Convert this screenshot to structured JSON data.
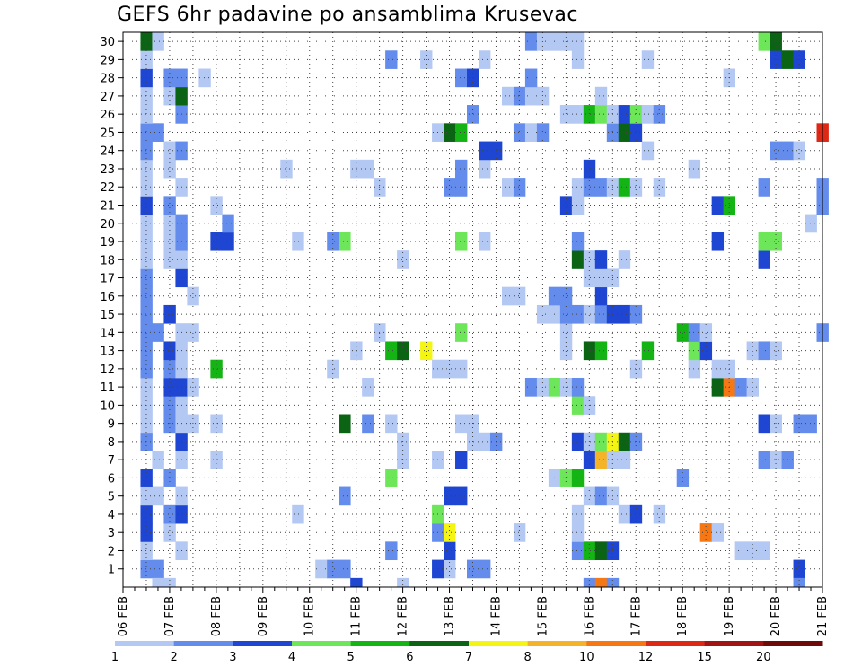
{
  "chart_data": {
    "type": "heatmap",
    "title": "GEFS 6hr padavine po ansamblima Krusevac",
    "x_tick_labels": [
      "06 FEB",
      "07 FEB",
      "08 FEB",
      "09 FEB",
      "10 FEB",
      "11 FEB",
      "12 FEB",
      "13 FEB",
      "14 FEB",
      "15 FEB",
      "16 FEB",
      "17 FEB",
      "18 FEB",
      "19 FEB",
      "20 FEB",
      "21 FEB"
    ],
    "x_range_6h_steps": [
      0,
      60
    ],
    "y_tick_labels": [
      "1",
      "2",
      "3",
      "4",
      "5",
      "6",
      "7",
      "8",
      "9",
      "10",
      "11",
      "12",
      "13",
      "14",
      "15",
      "16",
      "17",
      "18",
      "19",
      "20",
      "21",
      "22",
      "23",
      "24",
      "25",
      "26",
      "27",
      "28",
      "29",
      "30"
    ],
    "y_range_members": [
      0,
      30
    ],
    "grid": "dotted",
    "colorbar": {
      "bounds": [
        "1",
        "2",
        "3",
        "4",
        "5",
        "6",
        "7",
        "8",
        "10",
        "12",
        "15",
        "20"
      ],
      "colors": [
        "#b4c8f4",
        "#648cec",
        "#1e46d2",
        "#6ee65a",
        "#14b414",
        "#0a6414",
        "#f5f514",
        "#f5b428",
        "#f57814",
        "#dc2814",
        "#a01414",
        "#6e0a0a"
      ]
    },
    "note_rows": "each row: member index (1-30); each cell: [6h step index, color class 0-11]",
    "cells": [
      [
        1,
        [
          [
            2,
            1
          ],
          [
            3,
            1
          ],
          [
            17,
            0
          ],
          [
            18,
            1
          ],
          [
            19,
            1
          ],
          [
            27,
            2
          ],
          [
            28,
            0
          ],
          [
            30,
            1
          ],
          [
            31,
            1
          ],
          [
            58,
            2
          ]
        ]
      ],
      [
        2,
        [
          [
            2,
            0
          ],
          [
            5,
            0
          ],
          [
            23,
            1
          ],
          [
            28,
            2
          ],
          [
            39,
            1
          ],
          [
            40,
            4
          ],
          [
            41,
            5
          ],
          [
            42,
            2
          ],
          [
            53,
            0
          ],
          [
            54,
            0
          ],
          [
            55,
            0
          ]
        ]
      ],
      [
        3,
        [
          [
            2,
            2
          ],
          [
            4,
            0
          ],
          [
            27,
            1
          ],
          [
            28,
            6
          ],
          [
            34,
            0
          ],
          [
            39,
            0
          ],
          [
            50,
            8
          ],
          [
            51,
            0
          ]
        ]
      ],
      [
        4,
        [
          [
            2,
            2
          ],
          [
            4,
            1
          ],
          [
            5,
            2
          ],
          [
            15,
            0
          ],
          [
            27,
            3
          ],
          [
            39,
            0
          ],
          [
            43,
            0
          ],
          [
            44,
            2
          ],
          [
            46,
            0
          ]
        ]
      ],
      [
        5,
        [
          [
            2,
            0
          ],
          [
            3,
            0
          ],
          [
            5,
            0
          ],
          [
            19,
            1
          ],
          [
            28,
            2
          ],
          [
            29,
            2
          ],
          [
            40,
            0
          ],
          [
            41,
            1
          ],
          [
            42,
            0
          ]
        ]
      ],
      [
        6,
        [
          [
            2,
            2
          ],
          [
            4,
            1
          ],
          [
            23,
            3
          ],
          [
            37,
            0
          ],
          [
            38,
            3
          ],
          [
            39,
            4
          ],
          [
            48,
            1
          ]
        ]
      ],
      [
        7,
        [
          [
            3,
            0
          ],
          [
            5,
            0
          ],
          [
            8,
            0
          ],
          [
            24,
            0
          ],
          [
            27,
            0
          ],
          [
            29,
            2
          ],
          [
            40,
            2
          ],
          [
            41,
            7
          ],
          [
            42,
            0
          ],
          [
            43,
            0
          ],
          [
            55,
            1
          ],
          [
            56,
            0
          ],
          [
            57,
            1
          ]
        ]
      ],
      [
        8,
        [
          [
            2,
            1
          ],
          [
            5,
            2
          ],
          [
            24,
            0
          ],
          [
            30,
            0
          ],
          [
            31,
            0
          ],
          [
            32,
            1
          ],
          [
            39,
            2
          ],
          [
            40,
            0
          ],
          [
            41,
            3
          ],
          [
            42,
            6
          ],
          [
            43,
            5
          ],
          [
            44,
            1
          ]
        ]
      ],
      [
        9,
        [
          [
            2,
            0
          ],
          [
            4,
            1
          ],
          [
            5,
            0
          ],
          [
            6,
            0
          ],
          [
            8,
            0
          ],
          [
            19,
            5
          ],
          [
            21,
            1
          ],
          [
            23,
            0
          ],
          [
            29,
            0
          ],
          [
            30,
            0
          ],
          [
            55,
            2
          ],
          [
            56,
            0
          ],
          [
            58,
            1
          ],
          [
            59,
            1
          ]
        ]
      ],
      [
        10,
        [
          [
            2,
            0
          ],
          [
            4,
            1
          ],
          [
            5,
            0
          ],
          [
            39,
            3
          ],
          [
            40,
            0
          ]
        ]
      ],
      [
        11,
        [
          [
            2,
            0
          ],
          [
            4,
            2
          ],
          [
            5,
            2
          ],
          [
            6,
            0
          ],
          [
            21,
            0
          ],
          [
            35,
            1
          ],
          [
            36,
            0
          ],
          [
            37,
            3
          ],
          [
            38,
            0
          ],
          [
            39,
            1
          ],
          [
            51,
            5
          ],
          [
            52,
            8
          ],
          [
            53,
            1
          ],
          [
            54,
            0
          ]
        ]
      ],
      [
        12,
        [
          [
            2,
            1
          ],
          [
            4,
            1
          ],
          [
            5,
            0
          ],
          [
            8,
            4
          ],
          [
            18,
            0
          ],
          [
            27,
            0
          ],
          [
            28,
            0
          ],
          [
            29,
            0
          ],
          [
            44,
            0
          ],
          [
            49,
            0
          ],
          [
            51,
            0
          ],
          [
            52,
            0
          ]
        ]
      ],
      [
        13,
        [
          [
            2,
            1
          ],
          [
            4,
            2
          ],
          [
            5,
            0
          ],
          [
            20,
            0
          ],
          [
            23,
            4
          ],
          [
            24,
            5
          ],
          [
            26,
            6
          ],
          [
            38,
            0
          ],
          [
            40,
            5
          ],
          [
            41,
            4
          ],
          [
            45,
            4
          ],
          [
            49,
            3
          ],
          [
            50,
            2
          ],
          [
            54,
            0
          ],
          [
            55,
            1
          ],
          [
            56,
            0
          ]
        ]
      ],
      [
        14,
        [
          [
            2,
            1
          ],
          [
            3,
            1
          ],
          [
            5,
            0
          ],
          [
            6,
            0
          ],
          [
            22,
            0
          ],
          [
            29,
            3
          ],
          [
            38,
            0
          ],
          [
            48,
            4
          ],
          [
            49,
            1
          ],
          [
            50,
            0
          ],
          [
            60,
            1
          ]
        ]
      ],
      [
        15,
        [
          [
            2,
            1
          ],
          [
            4,
            2
          ],
          [
            36,
            0
          ],
          [
            37,
            0
          ],
          [
            38,
            1
          ],
          [
            39,
            1
          ],
          [
            40,
            0
          ],
          [
            41,
            1
          ],
          [
            42,
            2
          ],
          [
            43,
            2
          ],
          [
            44,
            1
          ]
        ]
      ],
      [
        16,
        [
          [
            2,
            1
          ],
          [
            6,
            0
          ],
          [
            33,
            0
          ],
          [
            34,
            0
          ],
          [
            37,
            1
          ],
          [
            38,
            1
          ],
          [
            41,
            2
          ]
        ]
      ],
      [
        17,
        [
          [
            2,
            1
          ],
          [
            5,
            2
          ],
          [
            40,
            0
          ],
          [
            41,
            0
          ],
          [
            42,
            0
          ]
        ]
      ],
      [
        18,
        [
          [
            2,
            0
          ],
          [
            4,
            0
          ],
          [
            5,
            0
          ],
          [
            24,
            0
          ],
          [
            39,
            5
          ],
          [
            40,
            0
          ],
          [
            41,
            2
          ],
          [
            43,
            0
          ],
          [
            55,
            2
          ]
        ]
      ],
      [
        19,
        [
          [
            2,
            0
          ],
          [
            4,
            0
          ],
          [
            5,
            1
          ],
          [
            8,
            2
          ],
          [
            9,
            2
          ],
          [
            15,
            0
          ],
          [
            18,
            1
          ],
          [
            19,
            3
          ],
          [
            29,
            3
          ],
          [
            31,
            0
          ],
          [
            39,
            1
          ],
          [
            51,
            2
          ],
          [
            55,
            3
          ],
          [
            56,
            3
          ]
        ]
      ],
      [
        20,
        [
          [
            2,
            0
          ],
          [
            4,
            0
          ],
          [
            5,
            1
          ],
          [
            9,
            1
          ],
          [
            59,
            0
          ]
        ]
      ],
      [
        21,
        [
          [
            2,
            2
          ],
          [
            4,
            1
          ],
          [
            8,
            0
          ],
          [
            38,
            2
          ],
          [
            39,
            0
          ],
          [
            51,
            2
          ],
          [
            52,
            4
          ],
          [
            60,
            1
          ]
        ]
      ],
      [
        22,
        [
          [
            2,
            0
          ],
          [
            5,
            0
          ],
          [
            22,
            0
          ],
          [
            28,
            1
          ],
          [
            29,
            1
          ],
          [
            33,
            0
          ],
          [
            34,
            1
          ],
          [
            39,
            0
          ],
          [
            40,
            1
          ],
          [
            41,
            1
          ],
          [
            42,
            0
          ],
          [
            43,
            4
          ],
          [
            44,
            0
          ],
          [
            46,
            0
          ],
          [
            55,
            1
          ],
          [
            60,
            1
          ]
        ]
      ],
      [
        23,
        [
          [
            2,
            0
          ],
          [
            4,
            0
          ],
          [
            14,
            0
          ],
          [
            20,
            0
          ],
          [
            21,
            0
          ],
          [
            29,
            1
          ],
          [
            31,
            0
          ],
          [
            40,
            2
          ],
          [
            49,
            0
          ]
        ]
      ],
      [
        24,
        [
          [
            2,
            1
          ],
          [
            4,
            0
          ],
          [
            5,
            1
          ],
          [
            31,
            2
          ],
          [
            32,
            2
          ],
          [
            45,
            0
          ],
          [
            56,
            1
          ],
          [
            57,
            1
          ],
          [
            58,
            0
          ]
        ]
      ],
      [
        25,
        [
          [
            2,
            1
          ],
          [
            3,
            1
          ],
          [
            27,
            0
          ],
          [
            28,
            5
          ],
          [
            29,
            4
          ],
          [
            34,
            1
          ],
          [
            35,
            0
          ],
          [
            36,
            1
          ],
          [
            42,
            1
          ],
          [
            43,
            5
          ],
          [
            44,
            2
          ],
          [
            60,
            9
          ]
        ]
      ],
      [
        26,
        [
          [
            2,
            0
          ],
          [
            5,
            1
          ],
          [
            30,
            1
          ],
          [
            38,
            0
          ],
          [
            39,
            0
          ],
          [
            40,
            4
          ],
          [
            41,
            3
          ],
          [
            42,
            0
          ],
          [
            43,
            2
          ],
          [
            44,
            3
          ],
          [
            45,
            0
          ],
          [
            46,
            1
          ]
        ]
      ],
      [
        27,
        [
          [
            2,
            0
          ],
          [
            4,
            0
          ],
          [
            5,
            5
          ],
          [
            33,
            0
          ],
          [
            34,
            1
          ],
          [
            35,
            0
          ],
          [
            36,
            0
          ],
          [
            41,
            0
          ]
        ]
      ],
      [
        28,
        [
          [
            2,
            2
          ],
          [
            4,
            1
          ],
          [
            5,
            1
          ],
          [
            7,
            0
          ],
          [
            29,
            1
          ],
          [
            30,
            2
          ],
          [
            35,
            1
          ],
          [
            52,
            0
          ]
        ]
      ],
      [
        29,
        [
          [
            2,
            0
          ],
          [
            23,
            1
          ],
          [
            26,
            0
          ],
          [
            31,
            0
          ],
          [
            39,
            0
          ],
          [
            45,
            0
          ],
          [
            56,
            2
          ],
          [
            57,
            5
          ],
          [
            58,
            2
          ]
        ]
      ],
      [
        30,
        [
          [
            2,
            5
          ],
          [
            3,
            0
          ],
          [
            35,
            1
          ],
          [
            36,
            0
          ],
          [
            37,
            0
          ],
          [
            38,
            0
          ],
          [
            39,
            0
          ],
          [
            55,
            3
          ],
          [
            56,
            5
          ]
        ]
      ],
      [
        0,
        [
          [
            3,
            0
          ],
          [
            4,
            0
          ],
          [
            20,
            2
          ],
          [
            24,
            0
          ],
          [
            40,
            1
          ],
          [
            41,
            8
          ],
          [
            42,
            1
          ],
          [
            58,
            1
          ]
        ]
      ]
    ]
  }
}
